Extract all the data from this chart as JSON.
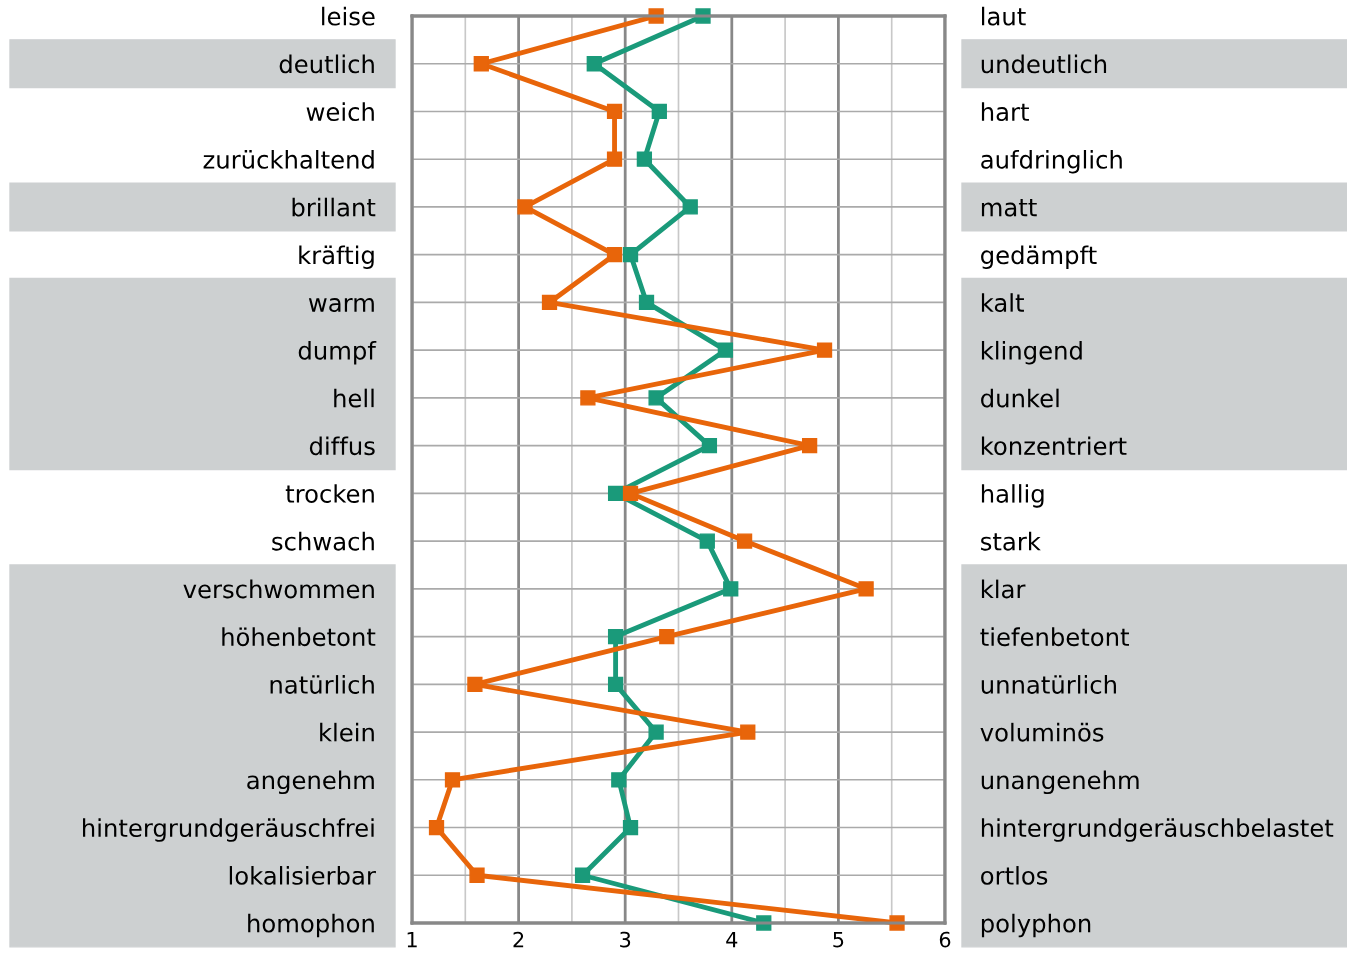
{
  "chart_data": {
    "type": "line",
    "orientation": "horizontal",
    "categories": [
      "leise",
      "deutlich",
      "weich",
      "zurückhaltend",
      "brillant",
      "kräftig",
      "warm",
      "dumpf",
      "hell",
      "diffus",
      "trocken",
      "schwach",
      "verschwommen",
      "höhenbetont",
      "natürlich",
      "klein",
      "angenehm",
      "hintergrundgeräuschfrei",
      "lokalisierbar",
      "homophon"
    ],
    "y2_categories": [
      "laut",
      "undeutlich",
      "hart",
      "aufdringlich",
      "matt",
      "gedämpft",
      "kalt",
      "klingend",
      "dunkel",
      "konzentriert",
      "hallig",
      "stark",
      "klar",
      "tiefenbetont",
      "unnatürlich",
      "voluminös",
      "unangenehm",
      "hintergrundgeräuschbelastet",
      "ortlos",
      "polyphon"
    ],
    "series": [
      {
        "color": "#1a9a7a",
        "values": [
          3.73,
          2.71,
          3.32,
          3.18,
          3.61,
          3.05,
          3.2,
          3.94,
          3.29,
          3.79,
          2.91,
          3.77,
          3.99,
          2.91,
          2.91,
          3.29,
          2.94,
          3.05,
          2.6,
          4.3
        ]
      },
      {
        "color": "#e8650a",
        "values": [
          3.29,
          1.65,
          2.9,
          2.9,
          2.06,
          2.9,
          2.29,
          4.87,
          2.65,
          4.73,
          3.05,
          4.12,
          5.26,
          3.39,
          1.59,
          4.15,
          1.38,
          1.23,
          1.61,
          5.55
        ]
      }
    ],
    "xlim": [
      1,
      6
    ],
    "xticks": [
      1,
      {
        "value": 1.5,
        "label": null
      },
      2,
      {
        "value": 2.5,
        "label": null
      },
      3,
      {
        "value": 3.5,
        "label": null
      },
      4,
      {
        "value": 4.5,
        "label": null
      },
      5,
      {
        "value": 5.5,
        "label": null
      },
      6
    ],
    "grid": true,
    "marker": "square",
    "line_style": "solid",
    "legend": false
  }
}
